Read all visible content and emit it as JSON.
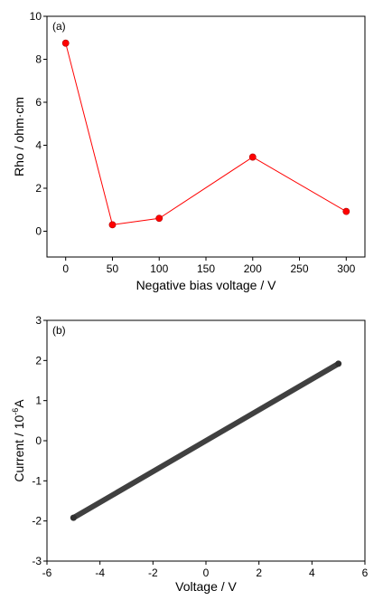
{
  "chart_data": [
    {
      "type": "line",
      "panel_label": "(a)",
      "xlabel": "Negative bias voltage / V",
      "ylabel": "Rho / ohm·cm",
      "xlim": [
        -20,
        320
      ],
      "ylim": [
        -1.2,
        10
      ],
      "xticks": [
        0,
        50,
        100,
        150,
        200,
        250,
        300
      ],
      "yticks": [
        0,
        2,
        4,
        6,
        8,
        10
      ],
      "grid": false,
      "series": [
        {
          "x": [
            0,
            50,
            100,
            200,
            300
          ],
          "y": [
            8.75,
            0.3,
            0.6,
            3.45,
            0.92
          ],
          "color": "#ff0000",
          "marker": "circle",
          "line": true
        }
      ]
    },
    {
      "type": "line",
      "panel_label": "(b)",
      "xlabel": "Voltage / V",
      "ylabel_main": "Current / 10",
      "ylabel_exp": "-6",
      "ylabel_unit": "A",
      "xlim": [
        -6,
        6
      ],
      "ylim": [
        -3,
        3
      ],
      "xticks": [
        -6,
        -4,
        -2,
        0,
        2,
        4,
        6
      ],
      "yticks": [
        -3,
        -2,
        -1,
        0,
        1,
        2,
        3
      ],
      "grid": false,
      "series": [
        {
          "x": [
            -5,
            5
          ],
          "y": [
            -1.92,
            1.92
          ],
          "color": "#404040",
          "marker": "circle",
          "line": true
        }
      ]
    }
  ]
}
